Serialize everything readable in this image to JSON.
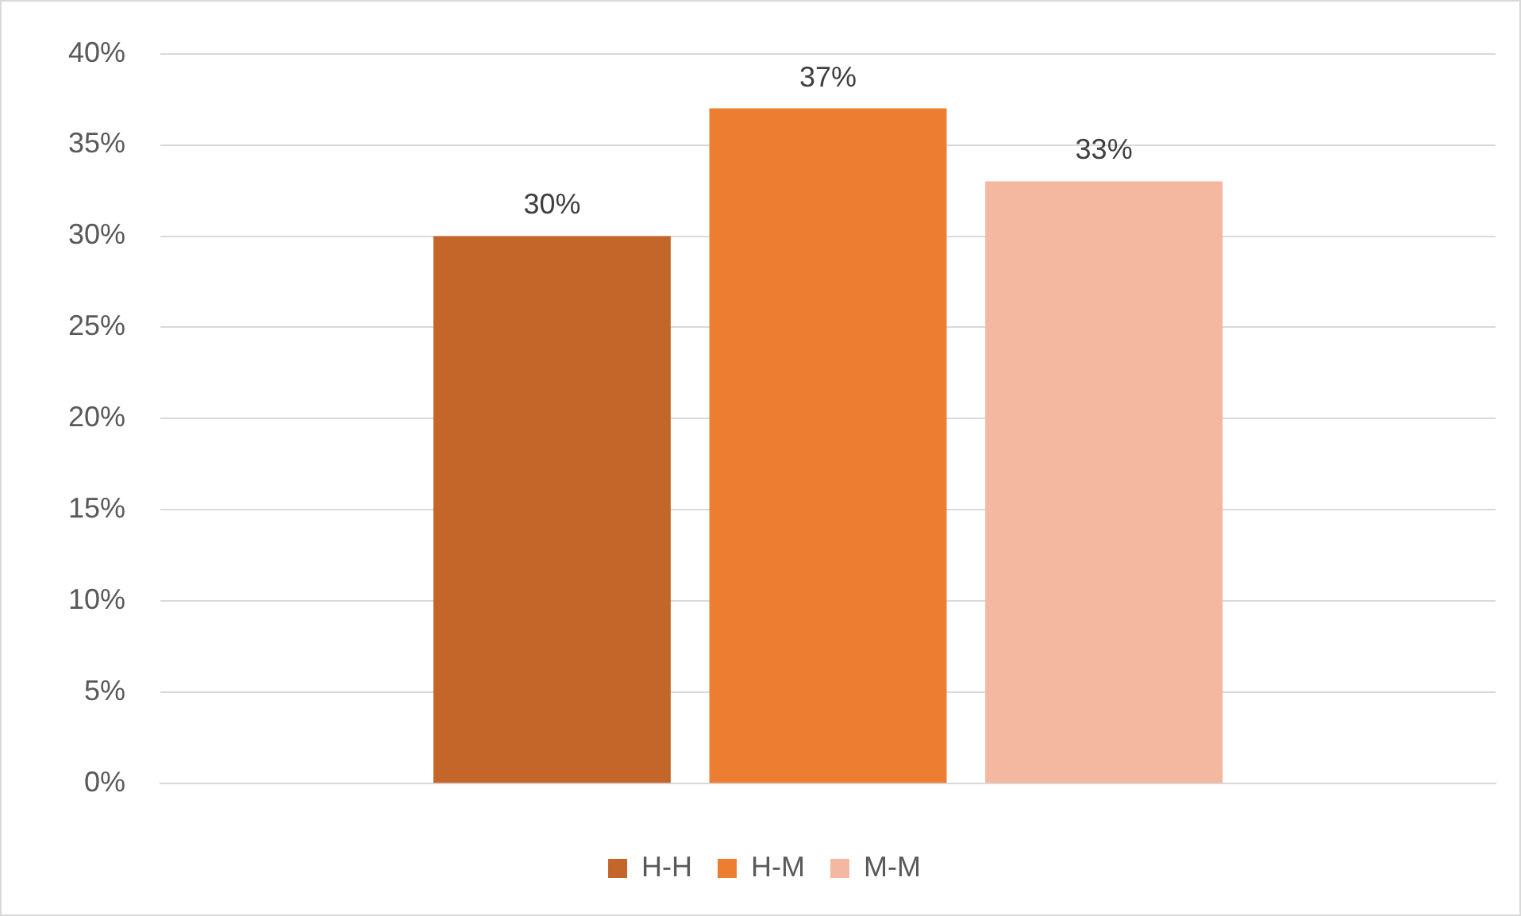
{
  "chart_data": {
    "type": "bar",
    "categories": [
      null
    ],
    "series": [
      {
        "name": "H-H",
        "color": "#c4652a",
        "values": [
          30
        ],
        "value_labels": [
          "30%"
        ]
      },
      {
        "name": "H-M",
        "color": "#ed7d31",
        "values": [
          37
        ],
        "value_labels": [
          "37%"
        ]
      },
      {
        "name": "M-M",
        "color": "#f4b8a0",
        "values": [
          33
        ],
        "value_labels": [
          "33%"
        ]
      }
    ],
    "ylim": [
      0,
      40
    ],
    "yticks": [
      {
        "value": 0,
        "label": "0%"
      },
      {
        "value": 5,
        "label": "5%"
      },
      {
        "value": 10,
        "label": "10%"
      },
      {
        "value": 15,
        "label": "15%"
      },
      {
        "value": 20,
        "label": "20%"
      },
      {
        "value": 25,
        "label": "25%"
      },
      {
        "value": 30,
        "label": "30%"
      },
      {
        "value": 35,
        "label": "35%"
      },
      {
        "value": 40,
        "label": "40%"
      }
    ],
    "grid": "y",
    "legend": "bottom"
  }
}
